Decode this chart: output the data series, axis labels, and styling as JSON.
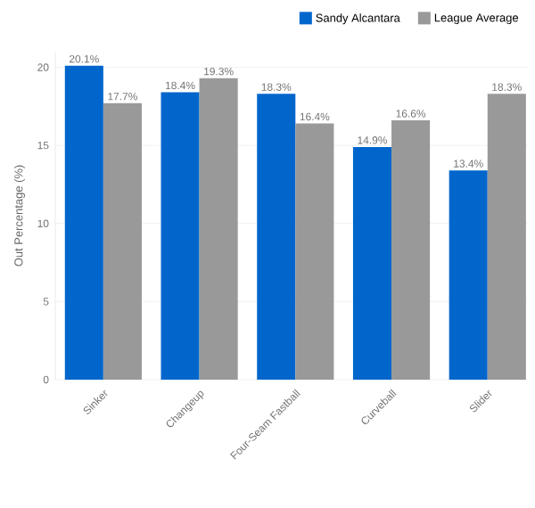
{
  "chart_data": {
    "type": "bar",
    "ylabel": "Out Percentage (%)",
    "categories": [
      "Sinker",
      "Changeup",
      "Four-Seam Fastball",
      "Curveball",
      "Slider"
    ],
    "series": [
      {
        "name": "Sandy Alcantara",
        "color": "#0066cc",
        "values": [
          20.1,
          18.4,
          18.3,
          14.9,
          13.4
        ],
        "value_labels": [
          "20.1%",
          "18.4%",
          "18.3%",
          "14.9%",
          "13.4%"
        ]
      },
      {
        "name": "League Average",
        "color": "#999999",
        "values": [
          17.7,
          19.3,
          16.4,
          16.6,
          18.3
        ],
        "value_labels": [
          "17.7%",
          "19.3%",
          "16.4%",
          "16.6%",
          "18.3%"
        ]
      }
    ],
    "ylim": [
      0,
      21
    ],
    "yticks": [
      0,
      5,
      10,
      15,
      20
    ],
    "grid": "y",
    "legend": "top right"
  }
}
